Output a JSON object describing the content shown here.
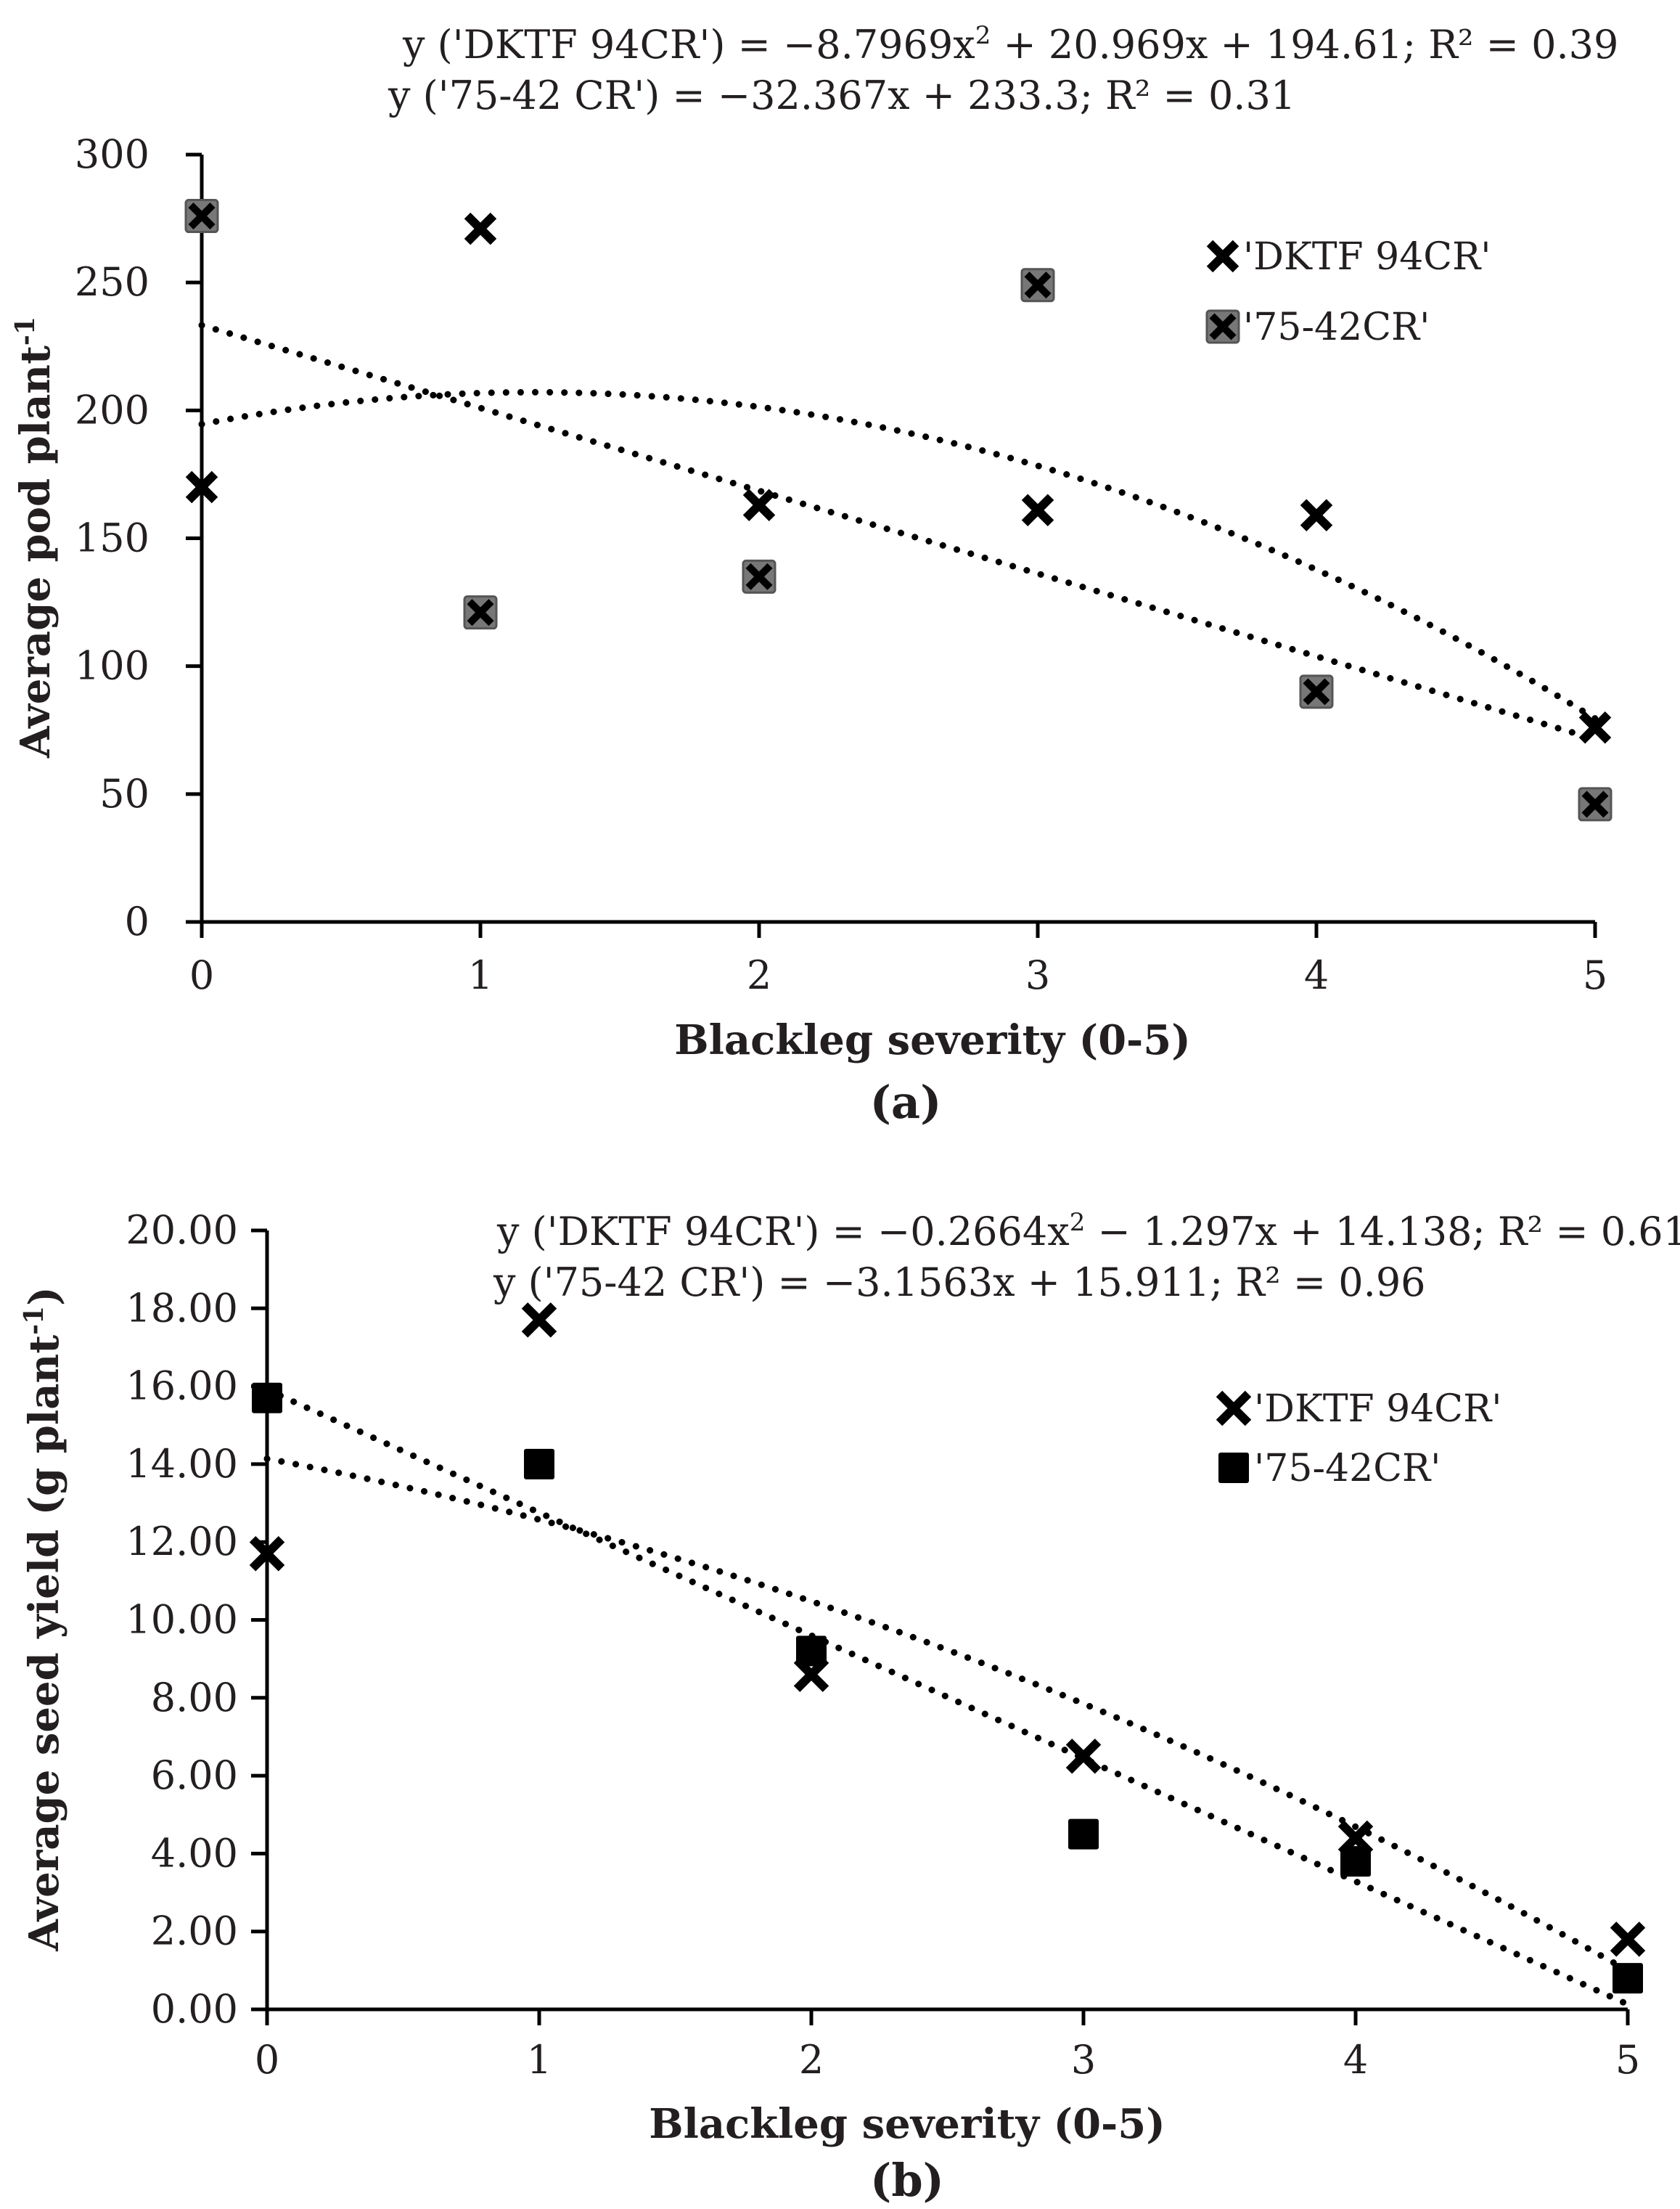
{
  "chart_data": [
    {
      "type": "scatter",
      "panel_label": "(a)",
      "title": "",
      "xlabel": "Blackleg severity (0-5)",
      "ylabel_main": "Average pod plant",
      "ylabel_sup": "-1",
      "xlim": [
        0,
        5
      ],
      "ylim": [
        0,
        300
      ],
      "x_ticks": [
        0,
        1,
        2,
        3,
        4,
        5
      ],
      "y_ticks": [
        0,
        50,
        100,
        150,
        200,
        250,
        300
      ],
      "y_tick_labels": [
        "0",
        "50",
        "100",
        "150",
        "200",
        "250",
        "300"
      ],
      "equations": [
        {
          "pre": "y ('DKTF 94CR') = −8.7969x",
          "sup": "2",
          "post": " + 20.969x + 194.61; R² = 0.39"
        },
        {
          "pre": "y ('75-42 CR') = −32.367x + 233.3; R² = 0.31",
          "sup": "",
          "post": ""
        }
      ],
      "series": [
        {
          "name": "'DKTF 94CR'",
          "marker": "x",
          "x": [
            0,
            1,
            2,
            3,
            4,
            5
          ],
          "y": [
            170,
            271,
            163,
            161,
            159,
            76
          ],
          "trend": {
            "kind": "poly2",
            "a": -8.7969,
            "b": 20.969,
            "c": 194.61
          }
        },
        {
          "name": "'75-42CR'",
          "marker": "square-x-gray",
          "x": [
            0,
            1,
            2,
            3,
            4,
            5
          ],
          "y": [
            276,
            121,
            135,
            249,
            90,
            46
          ],
          "trend": {
            "kind": "linear",
            "m": -32.367,
            "c": 233.3
          }
        }
      ]
    },
    {
      "type": "scatter",
      "panel_label": "(b)",
      "title": "",
      "xlabel": "Blackleg severity (0-5)",
      "ylabel_main": "Average seed yield (g plant",
      "ylabel_sup": "-1",
      "ylabel_end": ")",
      "xlim": [
        0,
        5
      ],
      "ylim": [
        0,
        20
      ],
      "x_ticks": [
        0,
        1,
        2,
        3,
        4,
        5
      ],
      "y_ticks": [
        0,
        2,
        4,
        6,
        8,
        10,
        12,
        14,
        16,
        18,
        20
      ],
      "y_tick_labels": [
        "0.00",
        "2.00",
        "4.00",
        "6.00",
        "8.00",
        "10.00",
        "12.00",
        "14.00",
        "16.00",
        "18.00",
        "20.00"
      ],
      "equations": [
        {
          "pre": "y ('DKTF 94CR') = −0.2664x",
          "sup": "2",
          "post": " − 1.297x + 14.138; R² = 0.61"
        },
        {
          "pre": "y ('75-42 CR') = −3.1563x + 15.911; R² = 0.96",
          "sup": "",
          "post": ""
        }
      ],
      "series": [
        {
          "name": "'DKTF 94CR'",
          "marker": "x",
          "x": [
            0,
            1,
            2,
            3,
            4,
            5
          ],
          "y": [
            11.7,
            17.7,
            8.6,
            6.5,
            4.4,
            1.8
          ],
          "trend": {
            "kind": "poly2",
            "a": -0.2664,
            "b": -1.297,
            "c": 14.138
          }
        },
        {
          "name": "'75-42CR'",
          "marker": "square",
          "x": [
            0,
            1,
            2,
            3,
            4,
            5
          ],
          "y": [
            15.7,
            14.0,
            9.2,
            4.5,
            3.8,
            0.8
          ],
          "trend": {
            "kind": "linear",
            "m": -3.1563,
            "c": 15.911
          }
        }
      ]
    }
  ]
}
